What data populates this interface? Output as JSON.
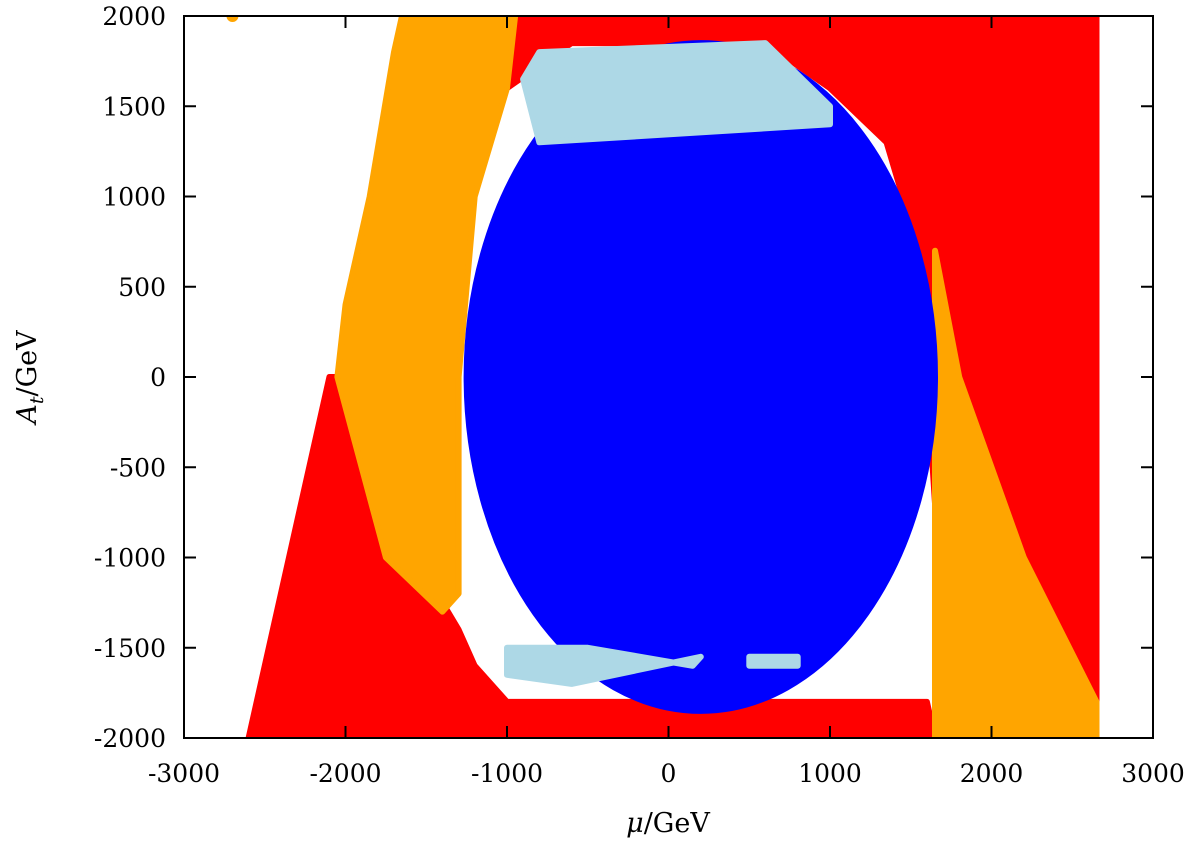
{
  "chart_data": {
    "type": "scatter",
    "xlabel": {
      "symbol": "μ",
      "unit": "/GeV"
    },
    "ylabel": {
      "symbol": "A",
      "subscript": "t",
      "unit": "/GeV"
    },
    "xlim": [
      -3000,
      3000
    ],
    "ylim": [
      -2000,
      2000
    ],
    "xticks": [
      "-3000",
      "-2000",
      "-1000",
      "0",
      "1000",
      "2000",
      "3000"
    ],
    "yticks": [
      "2000",
      "1500",
      "1000",
      "500",
      "0",
      "-500",
      "-1000",
      "-1500",
      "-2000"
    ],
    "grid": false,
    "legend": "none",
    "colors": {
      "red": "#ff0000",
      "orange": "#ffa500",
      "blue": "#0000ff",
      "lightblue": "#add8e6"
    },
    "regions": [
      {
        "color": "red",
        "description": "triangle region with vertices",
        "polygon": [
          [
            -2600,
            -2000
          ],
          [
            -2100,
            0
          ],
          [
            -2000,
            0
          ],
          [
            -1500,
            -1100
          ],
          [
            -1300,
            -1400
          ],
          [
            -1200,
            -1600
          ],
          [
            -1000,
            -1800
          ],
          [
            1600,
            -1800
          ],
          [
            1650,
            -2000
          ]
        ]
      },
      {
        "color": "red",
        "description": "upper-right region",
        "polygon": [
          [
            -1000,
            2000
          ],
          [
            2650,
            2000
          ],
          [
            2650,
            -2000
          ],
          [
            1650,
            -2000
          ],
          [
            1650,
            -700
          ],
          [
            1550,
            700
          ],
          [
            1350,
            1300
          ],
          [
            1000,
            1600
          ],
          [
            600,
            1850
          ],
          [
            -600,
            1850
          ],
          [
            -1000,
            1600
          ]
        ]
      },
      {
        "color": "orange",
        "description": "left band",
        "polygon": [
          [
            -1650,
            2000
          ],
          [
            -950,
            2000
          ],
          [
            -1000,
            1600
          ],
          [
            -1200,
            1000
          ],
          [
            -1300,
            0
          ],
          [
            -1300,
            -1200
          ],
          [
            -1400,
            -1300
          ],
          [
            -1750,
            -1000
          ],
          [
            -2050,
            0
          ],
          [
            -2000,
            400
          ],
          [
            -1850,
            1000
          ],
          [
            -1700,
            1800
          ]
        ]
      },
      {
        "color": "orange",
        "description": "right band",
        "polygon": [
          [
            1650,
            700
          ],
          [
            1800,
            0
          ],
          [
            2200,
            -1000
          ],
          [
            2650,
            -1800
          ],
          [
            2650,
            -2000
          ],
          [
            1650,
            -2000
          ]
        ]
      },
      {
        "color": "blue",
        "description": "central ellipse",
        "center": [
          200,
          0
        ],
        "semi_axes": [
          1450,
          1850
        ]
      },
      {
        "color": "lightblue",
        "description": "upper crescent",
        "polygon": [
          [
            -800,
            1800
          ],
          [
            600,
            1850
          ],
          [
            1000,
            1500
          ],
          [
            1000,
            1400
          ],
          [
            -800,
            1300
          ],
          [
            -900,
            1650
          ]
        ]
      },
      {
        "color": "lightblue",
        "description": "lower strips",
        "polygon": [
          [
            -1000,
            -1500
          ],
          [
            -500,
            -1500
          ],
          [
            150,
            -1600
          ],
          [
            200,
            -1550
          ],
          [
            -600,
            -1700
          ],
          [
            -1000,
            -1650
          ]
        ]
      },
      {
        "color": "lightblue",
        "description": "lower-right strip",
        "polygon": [
          [
            500,
            -1550
          ],
          [
            800,
            -1550
          ],
          [
            800,
            -1600
          ],
          [
            500,
            -1600
          ]
        ]
      }
    ],
    "points": [
      {
        "x": -2700,
        "y": 2000,
        "color": "orange"
      }
    ]
  }
}
